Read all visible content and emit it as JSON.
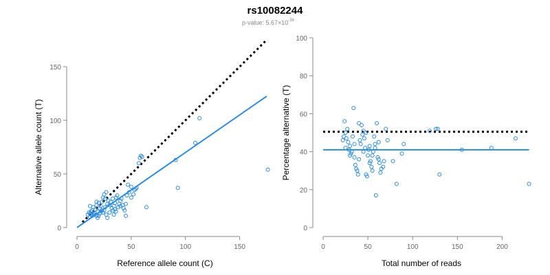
{
  "figure": {
    "title": "rs10082244",
    "pvalue_prefix": "p-value: 5.67",
    "pvalue_times": "×10",
    "pvalue_exponent": "-36"
  },
  "chart_data": [
    {
      "type": "scatter",
      "xlabel": "Reference allele count (C)",
      "ylabel": "Alternative allele count (T)",
      "xlim": [
        0,
        175
      ],
      "ylim": [
        0,
        150
      ],
      "xticks": [
        0,
        50,
        100,
        150
      ],
      "yticks": [
        0,
        50,
        100,
        150
      ],
      "grid": false,
      "colors": {
        "points": "#2a8be0",
        "fit": "#2a8be0",
        "reference": "#000000"
      },
      "reference_line": {
        "style": "dotted",
        "slope": 1,
        "intercept": 0,
        "x_range": [
          5,
          175
        ]
      },
      "fit_line": {
        "style": "solid",
        "slope": 0.7,
        "intercept": 0,
        "x_range": [
          0,
          175
        ]
      },
      "points": [
        [
          10,
          12
        ],
        [
          11,
          14
        ],
        [
          12,
          13
        ],
        [
          13,
          15
        ],
        [
          12,
          10
        ],
        [
          14,
          11
        ],
        [
          13,
          12
        ],
        [
          15,
          13
        ],
        [
          14,
          16
        ],
        [
          16,
          14
        ],
        [
          12,
          20
        ],
        [
          15,
          19
        ],
        [
          17,
          17
        ],
        [
          18,
          21
        ],
        [
          20,
          23
        ],
        [
          19,
          15
        ],
        [
          16,
          12
        ],
        [
          18,
          11
        ],
        [
          21,
          18
        ],
        [
          22,
          20
        ],
        [
          23,
          24
        ],
        [
          24,
          28
        ],
        [
          25,
          31
        ],
        [
          26,
          27
        ],
        [
          27,
          33
        ],
        [
          24,
          14
        ],
        [
          25,
          16
        ],
        [
          26,
          19
        ],
        [
          28,
          22
        ],
        [
          30,
          21
        ],
        [
          29,
          25
        ],
        [
          31,
          24
        ],
        [
          33,
          27
        ],
        [
          32,
          18
        ],
        [
          34,
          20
        ],
        [
          35,
          23
        ],
        [
          36,
          28
        ],
        [
          37,
          30
        ],
        [
          35,
          17
        ],
        [
          38,
          19
        ],
        [
          39,
          22
        ],
        [
          40,
          25
        ],
        [
          41,
          27
        ],
        [
          42,
          21
        ],
        [
          43,
          18
        ],
        [
          44,
          16
        ],
        [
          45,
          11
        ],
        [
          46,
          30
        ],
        [
          48,
          33
        ],
        [
          50,
          28
        ],
        [
          52,
          31
        ],
        [
          53,
          35
        ],
        [
          55,
          37
        ],
        [
          57,
          60
        ],
        [
          58,
          65
        ],
        [
          59,
          67
        ],
        [
          60,
          66
        ],
        [
          64,
          19
        ],
        [
          91,
          63
        ],
        [
          93,
          37
        ],
        [
          109,
          79
        ],
        [
          113,
          102
        ],
        [
          176,
          54
        ],
        [
          20,
          11
        ],
        [
          22,
          15
        ],
        [
          27,
          12
        ],
        [
          30,
          14
        ],
        [
          34,
          12
        ],
        [
          36,
          15
        ],
        [
          40,
          20
        ],
        [
          28,
          9
        ],
        [
          33,
          16
        ],
        [
          45,
          22
        ],
        [
          47,
          40
        ],
        [
          50,
          38
        ],
        [
          54,
          36
        ],
        [
          19,
          9
        ],
        [
          21,
          13
        ],
        [
          23,
          16
        ],
        [
          18,
          24
        ]
      ]
    },
    {
      "type": "scatter",
      "xlabel": "Total number of reads",
      "ylabel": "Percentage alternative (T)",
      "xlim": [
        0,
        235
      ],
      "ylim": [
        0,
        100
      ],
      "xticks": [
        0,
        50,
        100,
        150,
        200
      ],
      "yticks": [
        0,
        20,
        40,
        60,
        80,
        100
      ],
      "grid": false,
      "colors": {
        "points": "#2a8be0",
        "fit": "#2a8be0",
        "reference": "#000000"
      },
      "reference_line": {
        "style": "dotted",
        "y": 50.5,
        "x_range": [
          0,
          230
        ]
      },
      "fit_line": {
        "style": "solid",
        "y": 41,
        "x_range": [
          0,
          230
        ]
      },
      "points": [
        [
          22,
          46
        ],
        [
          23,
          48
        ],
        [
          24,
          56
        ],
        [
          25,
          50
        ],
        [
          26,
          47
        ],
        [
          27,
          52
        ],
        [
          28,
          45
        ],
        [
          29,
          41
        ],
        [
          30,
          43
        ],
        [
          31,
          39
        ],
        [
          32,
          40
        ],
        [
          33,
          48
        ],
        [
          34,
          63
        ],
        [
          35,
          37
        ],
        [
          36,
          33
        ],
        [
          37,
          31
        ],
        [
          38,
          30
        ],
        [
          39,
          28
        ],
        [
          40,
          55
        ],
        [
          41,
          46
        ],
        [
          42,
          44
        ],
        [
          43,
          54
        ],
        [
          44,
          49
        ],
        [
          45,
          51
        ],
        [
          46,
          47
        ],
        [
          47,
          42
        ],
        [
          48,
          50
        ],
        [
          49,
          27
        ],
        [
          50,
          38
        ],
        [
          51,
          41
        ],
        [
          52,
          43
        ],
        [
          53,
          35
        ],
        [
          54,
          32
        ],
        [
          55,
          30
        ],
        [
          56,
          40
        ],
        [
          57,
          48
        ],
        [
          58,
          42
        ],
        [
          59,
          17
        ],
        [
          60,
          55
        ],
        [
          61,
          37
        ],
        [
          62,
          45
        ],
        [
          63,
          34
        ],
        [
          64,
          29
        ],
        [
          65,
          31
        ],
        [
          67,
          32
        ],
        [
          68,
          35
        ],
        [
          70,
          52
        ],
        [
          72,
          46
        ],
        [
          78,
          35
        ],
        [
          82,
          23
        ],
        [
          88,
          39
        ],
        [
          90,
          44
        ],
        [
          119,
          51
        ],
        [
          126,
          52
        ],
        [
          128,
          52
        ],
        [
          130,
          28
        ],
        [
          155,
          41
        ],
        [
          188,
          42
        ],
        [
          215,
          47
        ],
        [
          230,
          23
        ],
        [
          25,
          42
        ],
        [
          30,
          38
        ],
        [
          35,
          44
        ],
        [
          40,
          36
        ],
        [
          45,
          40
        ],
        [
          48,
          28
        ],
        [
          52,
          34
        ],
        [
          55,
          38
        ],
        [
          58,
          44
        ],
        [
          62,
          36
        ]
      ]
    }
  ]
}
